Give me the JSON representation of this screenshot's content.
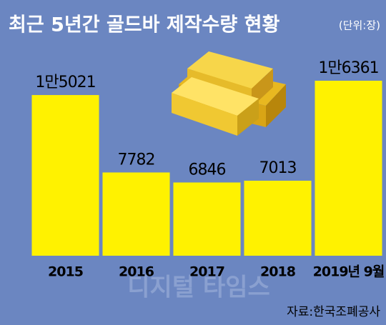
{
  "chart_data": {
    "type": "bar",
    "title": "최근 5년간 골드바 제작수량 현황",
    "subtitle": "(단위:장)",
    "source": "자료:한국조폐공사",
    "watermark": "디지털 타임스",
    "categories": [
      "2015",
      "2016",
      "2017",
      "2018",
      "2019년 9월"
    ],
    "values": [
      15021,
      7782,
      6846,
      7013,
      16361
    ],
    "value_labels": [
      "1만5021",
      "7782",
      "6846",
      "7013",
      "1만6361"
    ],
    "color": "#fff200",
    "ylim": [
      0,
      16361
    ]
  }
}
